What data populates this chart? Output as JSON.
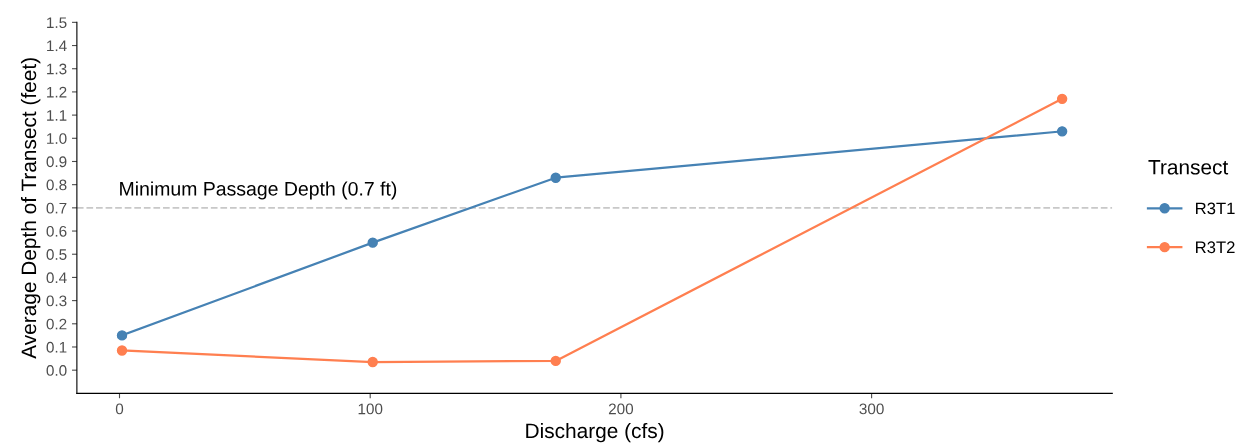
{
  "chart_data": {
    "type": "line",
    "xlabel": "Discharge (cfs)",
    "ylabel": "Average Depth of Transect (feet)",
    "legend_title": "Transect",
    "legend": "right",
    "grid": false,
    "marker": "circle",
    "line_style": "solid",
    "xlim": [
      -17,
      396
    ],
    "xticks": [
      0,
      100,
      200,
      300
    ],
    "ylim": [
      -0.1,
      1.5
    ],
    "yticks": [
      {
        "value": 0,
        "label": "0.0"
      },
      0.1,
      0.2,
      0.3,
      0.4,
      0.5,
      0.6,
      0.7,
      0.8,
      0.9,
      {
        "value": 1,
        "label": "1.0"
      },
      1.1,
      1.2,
      1.3,
      1.4,
      1.5
    ],
    "series": [
      {
        "name": "R3T1",
        "color": "#4682b4",
        "x": [
          1,
          101,
          174,
          376
        ],
        "values": [
          0.15,
          0.55,
          0.83,
          1.03
        ]
      },
      {
        "name": "R3T2",
        "color": "#ff7f50",
        "x": [
          1,
          101,
          174,
          376
        ],
        "values": [
          0.085,
          0.035,
          0.04,
          1.17
        ]
      }
    ],
    "ref_lines": [
      {
        "axis": "y",
        "value": 0.7,
        "label": "Minimum Passage Depth (0.7 ft)",
        "color": "#c8c8c8",
        "line_style": "dashed"
      }
    ]
  }
}
